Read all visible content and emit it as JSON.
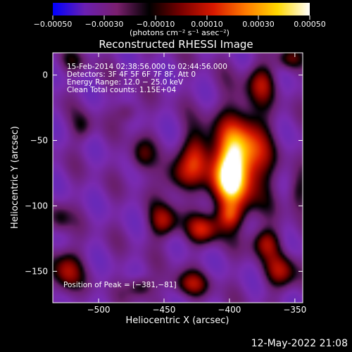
{
  "chart_data": {
    "type": "heatmap",
    "title": "Reconstructed RHESSI Image",
    "xlabel": "Heliocentric X (arcsec)",
    "ylabel": "Heliocentric Y (arcsec)",
    "xlim": [
      -535,
      -344
    ],
    "ylim": [
      -174,
      17
    ],
    "x_ticks": [
      -500,
      -450,
      -400,
      -350
    ],
    "y_ticks": [
      0,
      -50,
      -100,
      -150
    ],
    "x_tick_labels": [
      "−500",
      "−450",
      "−400",
      "−350"
    ],
    "y_tick_labels": [
      "0",
      "−50",
      "−100",
      "−150"
    ],
    "colorbar": {
      "range": [
        -0.0005,
        0.0005
      ],
      "ticks": [
        -0.0005,
        -0.0003,
        -0.0001,
        0.0001,
        0.0003,
        0.0005
      ],
      "tick_labels": [
        "−0.00050",
        "−0.00030",
        "−0.00010",
        "0.00010",
        "0.00030",
        "0.00050"
      ],
      "units": "(photons cm⁻² s⁻¹ asec⁻²)",
      "colors": [
        "#0000ff",
        "#6a1fb0",
        "#7a1f6e",
        "#000000",
        "#7a0000",
        "#d81800",
        "#ff7a00",
        "#ffd800",
        "#ffffff"
      ]
    },
    "annotations": [
      "15‐Feb‐2014 02:38:56.000 to 02:44:56.000",
      "Detectors: 3F 4F 5F 6F 7F 8F, Att 0",
      "Energy Range: 12.0 − 25.0 keV",
      "Clean    Total counts: 1.15E+04",
      "Position of Peak = [−381,−81]"
    ],
    "peak": {
      "x": -381,
      "y": -81
    },
    "background_color": "#7030b0",
    "sources": [
      {
        "x": -390,
        "y": -62,
        "sx": 14,
        "sy": 26,
        "amp": 0.00055
      },
      {
        "x": -402,
        "y": -78,
        "sx": 10,
        "sy": 18,
        "amp": 0.00042
      },
      {
        "x": -425,
        "y": -60,
        "sx": 8,
        "sy": 14,
        "amp": 0.00032
      },
      {
        "x": -440,
        "y": -78,
        "sx": 10,
        "sy": 10,
        "amp": 0.00025
      },
      {
        "x": -468,
        "y": -62,
        "sx": 7,
        "sy": 9,
        "amp": 0.00022
      },
      {
        "x": -450,
        "y": -112,
        "sx": 8,
        "sy": 9,
        "amp": 0.00033
      },
      {
        "x": -420,
        "y": -118,
        "sx": 9,
        "sy": 8,
        "amp": 0.00034
      },
      {
        "x": -400,
        "y": -108,
        "sx": 7,
        "sy": 7,
        "amp": 0.00026
      },
      {
        "x": -372,
        "y": -128,
        "sx": 8,
        "sy": 8,
        "amp": 0.0003
      },
      {
        "x": -360,
        "y": -150,
        "sx": 9,
        "sy": 10,
        "amp": 0.0003
      },
      {
        "x": -430,
        "y": -160,
        "sx": 10,
        "sy": 7,
        "amp": 0.00028
      },
      {
        "x": -468,
        "y": -162,
        "sx": 7,
        "sy": 6,
        "amp": 0.00024
      },
      {
        "x": -525,
        "y": -150,
        "sx": 8,
        "sy": 12,
        "amp": 0.00032
      },
      {
        "x": -530,
        "y": -110,
        "sx": 6,
        "sy": 8,
        "amp": 0.00018
      },
      {
        "x": -512,
        "y": -40,
        "sx": 6,
        "sy": 8,
        "amp": 0.00016
      },
      {
        "x": -478,
        "y": -28,
        "sx": 6,
        "sy": 6,
        "amp": 0.00018
      },
      {
        "x": -375,
        "y": -5,
        "sx": 8,
        "sy": 10,
        "amp": 0.00026
      },
      {
        "x": -355,
        "y": 12,
        "sx": 7,
        "sy": 6,
        "amp": 0.00022
      },
      {
        "x": -348,
        "y": -90,
        "sx": 6,
        "sy": 10,
        "amp": 0.0002
      },
      {
        "x": -520,
        "y": 10,
        "sx": 8,
        "sy": 6,
        "amp": 0.00012
      }
    ]
  },
  "timestamp": "12‐May‐2022 21:08"
}
